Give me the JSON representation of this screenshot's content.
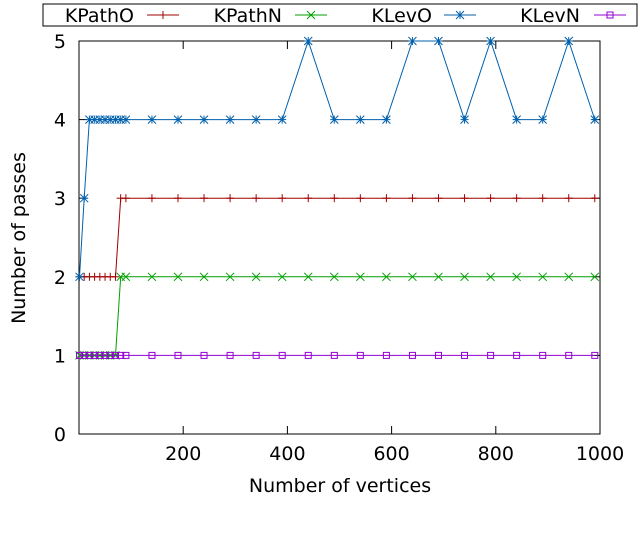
{
  "chart_data": {
    "type": "line",
    "title": "",
    "xlabel": "Number of vertices",
    "ylabel": "Number of passes",
    "xlim": [
      0,
      1000
    ],
    "ylim": [
      0,
      5
    ],
    "xticks": [
      200,
      400,
      600,
      800,
      1000
    ],
    "yticks": [
      0,
      1,
      2,
      3,
      4,
      5
    ],
    "grid": false,
    "legend_position": "top",
    "series": [
      {
        "name": "KPathO",
        "color": "#a00000",
        "marker": "plus",
        "x": [
          1,
          10,
          20,
          30,
          40,
          50,
          60,
          70,
          80,
          90,
          140,
          190,
          240,
          290,
          340,
          390,
          440,
          490,
          540,
          590,
          640,
          690,
          740,
          790,
          840,
          890,
          940,
          990
        ],
        "y": [
          2,
          2,
          2,
          2,
          2,
          2,
          2,
          2,
          3,
          3,
          3,
          3,
          3,
          3,
          3,
          3,
          3,
          3,
          3,
          3,
          3,
          3,
          3,
          3,
          3,
          3,
          3,
          3
        ]
      },
      {
        "name": "KPathN",
        "color": "#00a000",
        "marker": "cross",
        "x": [
          1,
          10,
          20,
          30,
          40,
          50,
          60,
          70,
          80,
          90,
          140,
          190,
          240,
          290,
          340,
          390,
          440,
          490,
          540,
          590,
          640,
          690,
          740,
          790,
          840,
          890,
          940,
          990
        ],
        "y": [
          1,
          1,
          1,
          1,
          1,
          1,
          1,
          1,
          2,
          2,
          2,
          2,
          2,
          2,
          2,
          2,
          2,
          2,
          2,
          2,
          2,
          2,
          2,
          2,
          2,
          2,
          2,
          2
        ]
      },
      {
        "name": "KLevO",
        "color": "#0060ad",
        "marker": "star",
        "x": [
          1,
          10,
          20,
          30,
          40,
          50,
          60,
          70,
          80,
          90,
          140,
          190,
          240,
          290,
          340,
          390,
          440,
          490,
          540,
          590,
          640,
          690,
          740,
          790,
          840,
          890,
          940,
          990
        ],
        "y": [
          2,
          3,
          4,
          4,
          4,
          4,
          4,
          4,
          4,
          4,
          4,
          4,
          4,
          4,
          4,
          4,
          5,
          4,
          4,
          4,
          5,
          5,
          4,
          5,
          4,
          4,
          5,
          4
        ]
      },
      {
        "name": "KLevN",
        "color": "#9400d3",
        "marker": "square",
        "x": [
          1,
          10,
          20,
          30,
          40,
          50,
          60,
          70,
          80,
          90,
          140,
          190,
          240,
          290,
          340,
          390,
          440,
          490,
          540,
          590,
          640,
          690,
          740,
          790,
          840,
          890,
          940,
          990
        ],
        "y": [
          1,
          1,
          1,
          1,
          1,
          1,
          1,
          1,
          1,
          1,
          1,
          1,
          1,
          1,
          1,
          1,
          1,
          1,
          1,
          1,
          1,
          1,
          1,
          1,
          1,
          1,
          1,
          1
        ]
      }
    ]
  }
}
